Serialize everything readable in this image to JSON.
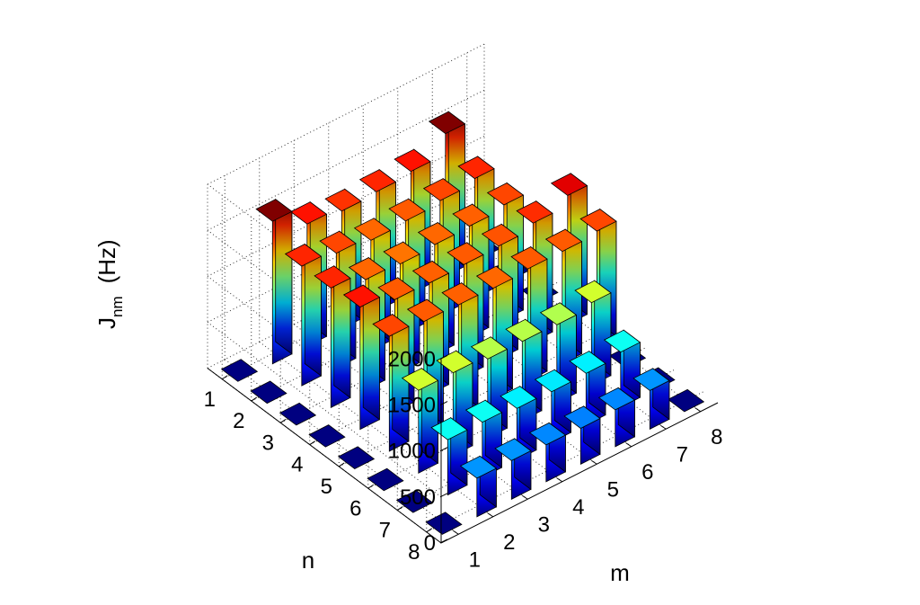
{
  "chart_data": {
    "type": "bar3d",
    "title": "",
    "zlabel_main": "J",
    "zlabel_sub": "nm",
    "zlabel_unit": "(Hz)",
    "xlabel": "m",
    "ylabel": "n",
    "m_ticks": [
      "1",
      "2",
      "3",
      "4",
      "5",
      "6",
      "7",
      "8"
    ],
    "n_ticks": [
      "1",
      "2",
      "3",
      "4",
      "5",
      "6",
      "7",
      "8"
    ],
    "z_ticks": [
      "0",
      "500",
      "1000",
      "1500",
      "2000"
    ],
    "zlim": [
      0,
      2000
    ],
    "grid": true,
    "colormap": "jet",
    "values": [
      [
        0,
        1550,
        1330,
        1280,
        1300,
        1330,
        1550,
        0
      ],
      [
        0,
        1300,
        1250,
        1200,
        1220,
        1250,
        1300,
        0
      ],
      [
        0,
        1300,
        1200,
        1180,
        1200,
        1210,
        1250,
        0
      ],
      [
        0,
        1330,
        1220,
        1210,
        1220,
        1230,
        1290,
        1400
      ],
      [
        0,
        1250,
        1220,
        1210,
        1200,
        1220,
        1220,
        1250
      ],
      [
        0,
        900,
        900,
        860,
        860,
        850,
        900,
        0
      ],
      [
        0,
        600,
        600,
        560,
        550,
        560,
        600,
        0
      ],
      [
        0,
        420,
        420,
        400,
        390,
        400,
        420,
        0
      ]
    ]
  }
}
